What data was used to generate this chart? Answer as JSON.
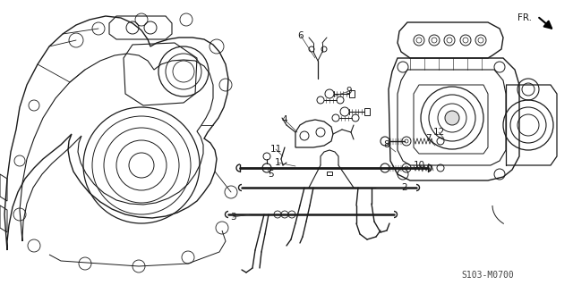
{
  "background_color": "#ffffff",
  "diagram_code_text": "S103-M0700",
  "figsize": [
    6.4,
    3.19
  ],
  "dpi": 100,
  "image_data": ""
}
